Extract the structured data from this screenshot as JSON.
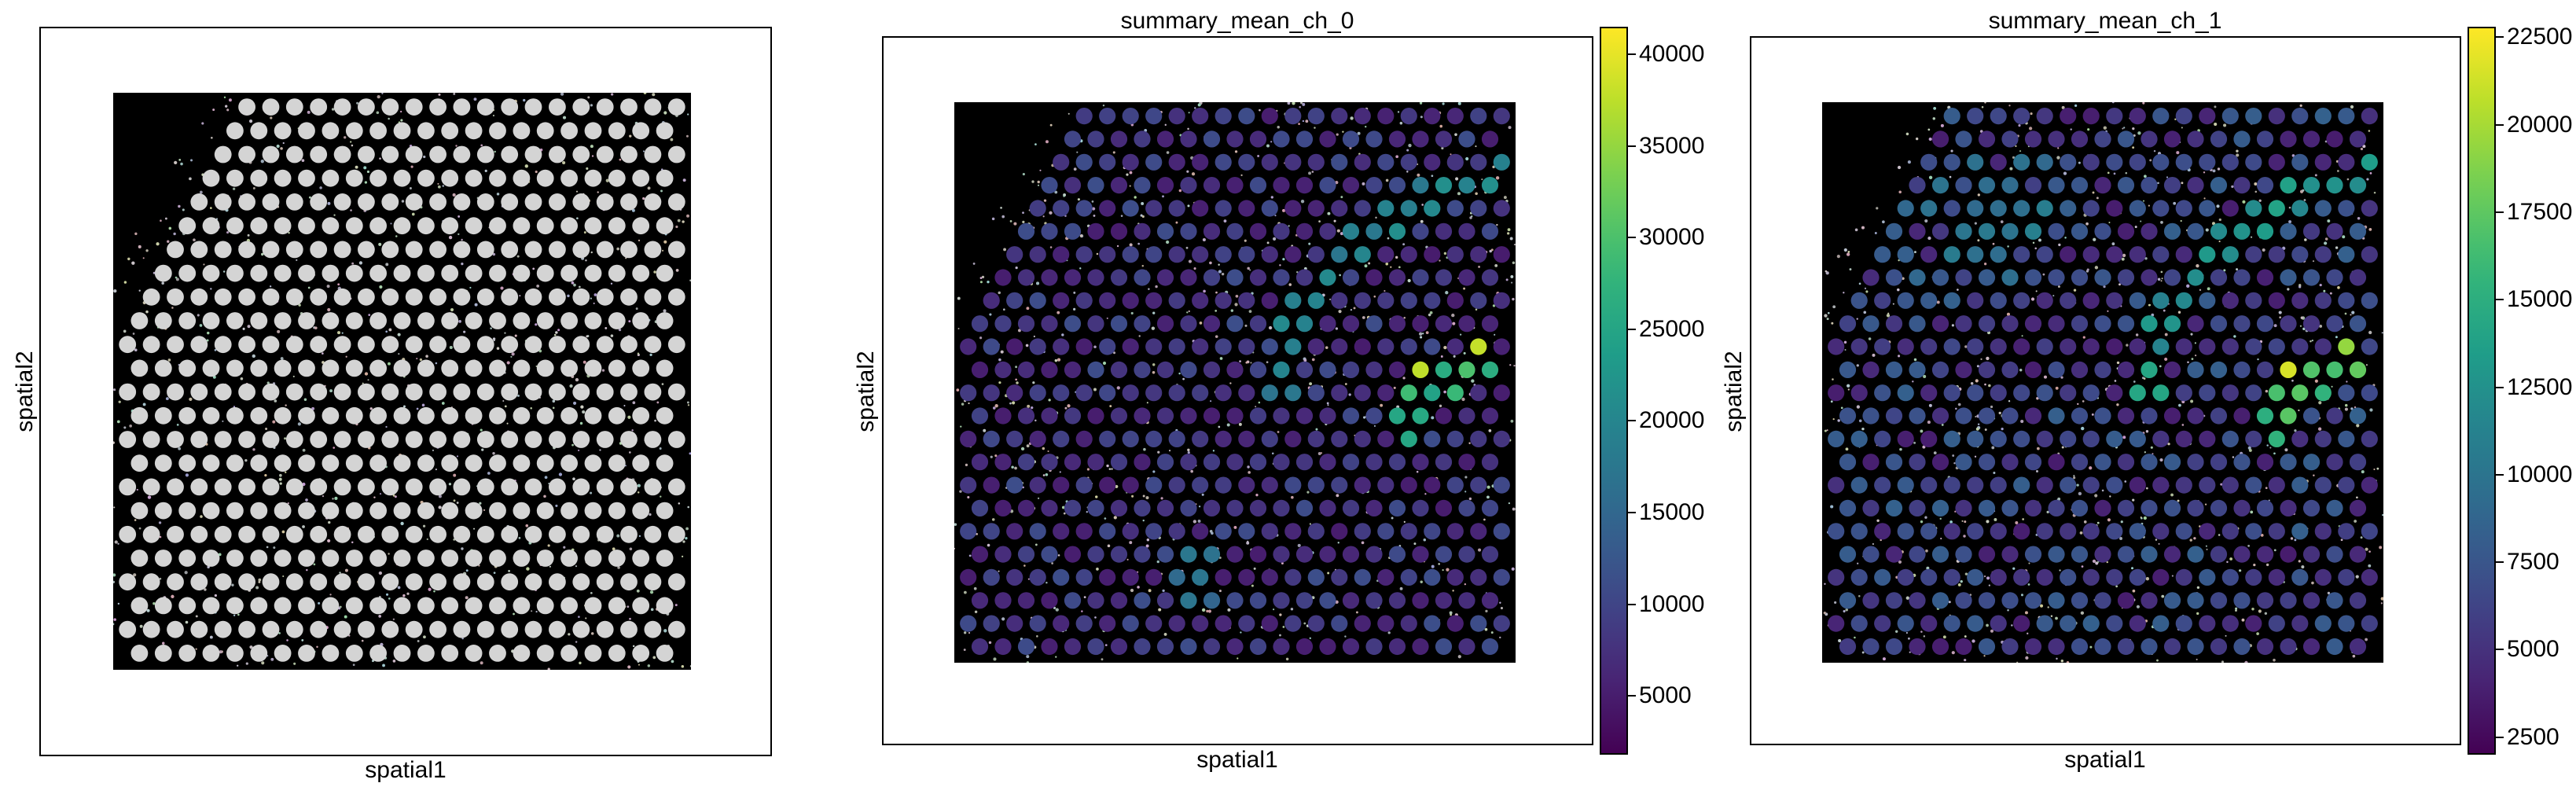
{
  "chart_data": [
    {
      "type": "scatter",
      "title": "",
      "xlabel": "spatial1",
      "ylabel": "spatial2",
      "spot_color": "#d4d4d4",
      "background_image": "grayscale-tissue"
    },
    {
      "type": "scatter",
      "title": "summary_mean_ch_0",
      "xlabel": "spatial1",
      "ylabel": "spatial2",
      "colormap": "viridis",
      "colorbar_range": [
        1800,
        41500
      ],
      "colorbar_ticks": [
        "5000",
        "10000",
        "15000",
        "20000",
        "25000",
        "30000",
        "35000",
        "40000"
      ],
      "colorbar_tick_values": [
        5000,
        10000,
        15000,
        20000,
        25000,
        30000,
        35000,
        40000
      ],
      "background_level": 8000,
      "highlights": [
        {
          "region": "outer-arc",
          "value": 20000
        },
        {
          "region": "inner-arc-bright",
          "value": 38000
        },
        {
          "region": "inner-arc",
          "value": 28000
        },
        {
          "region": "lower-stalk",
          "value": 17000
        }
      ]
    },
    {
      "type": "scatter",
      "title": "summary_mean_ch_1",
      "xlabel": "spatial1",
      "ylabel": "spatial2",
      "colormap": "viridis",
      "colorbar_range": [
        2000,
        22800
      ],
      "colorbar_ticks": [
        "2500",
        "5000",
        "7500",
        "10000",
        "12500",
        "15000",
        "17500",
        "20000",
        "22500"
      ],
      "colorbar_tick_values": [
        2500,
        5000,
        7500,
        10000,
        12500,
        15000,
        17500,
        20000,
        22500
      ],
      "background_level": 6000,
      "highlights": [
        {
          "region": "outer-arc",
          "value": 13000
        },
        {
          "region": "inner-arc-bright",
          "value": 21500
        },
        {
          "region": "inner-arc",
          "value": 17000
        },
        {
          "region": "upper-left-cortex",
          "value": 10500
        }
      ]
    }
  ]
}
